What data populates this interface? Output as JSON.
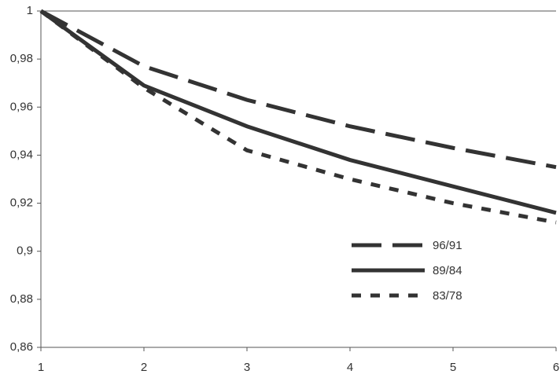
{
  "chart_data": {
    "type": "line",
    "x": [
      1,
      2,
      3,
      4,
      5,
      6
    ],
    "xlim": [
      1,
      6
    ],
    "xticks": [
      1,
      2,
      3,
      4,
      5,
      6
    ],
    "ylim": [
      0.86,
      1
    ],
    "yticks": [
      {
        "value": 0.86,
        "label": "0,86"
      },
      {
        "value": 0.88,
        "label": "0,88"
      },
      {
        "value": 0.9,
        "label": "0,9"
      },
      {
        "value": 0.92,
        "label": "0,92"
      },
      {
        "value": 0.94,
        "label": "0,94"
      },
      {
        "value": 0.96,
        "label": "0,96"
      },
      {
        "value": 0.98,
        "label": "0,98"
      },
      1
    ],
    "grid": false,
    "series": [
      {
        "name": "96/91",
        "color": "#333333",
        "dash": "long",
        "values": [
          1,
          0.977,
          0.963,
          0.952,
          0.943,
          0.935
        ]
      },
      {
        "name": "89/84",
        "color": "#333333",
        "dash": "solid",
        "values": [
          1,
          0.969,
          0.952,
          0.938,
          0.927,
          0.916
        ]
      },
      {
        "name": "83/78",
        "color": "#333333",
        "dash": "short",
        "values": [
          1,
          0.968,
          0.942,
          0.93,
          0.92,
          0.912
        ]
      }
    ]
  }
}
